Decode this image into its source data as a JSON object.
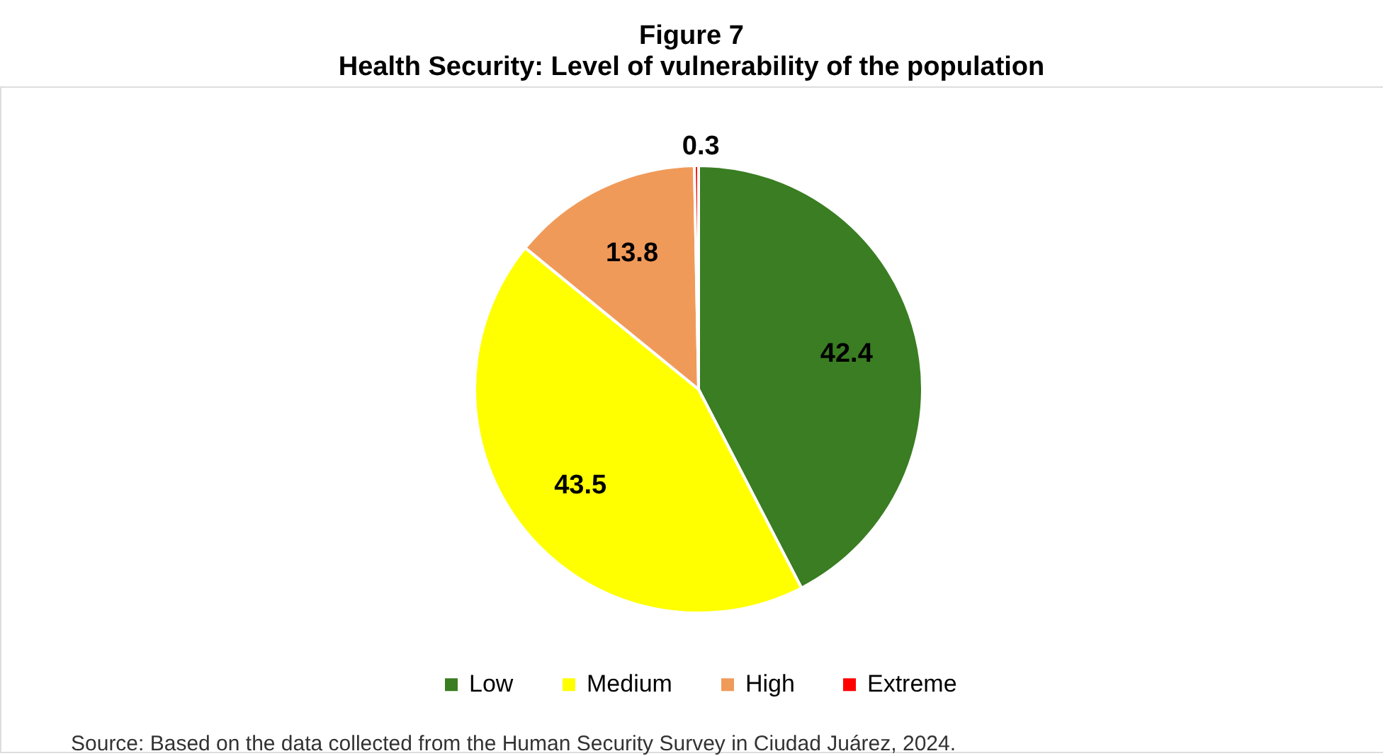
{
  "chart_data": {
    "type": "pie",
    "title": "Figure 7",
    "subtitle": "Health Security: Level of vulnerability of the population",
    "categories": [
      "Low",
      "Medium",
      "High",
      "Extreme"
    ],
    "values": [
      42.4,
      43.5,
      13.8,
      0.3
    ],
    "colors": [
      "#3a7d22",
      "#ffff00",
      "#f09a5a",
      "#ff0000"
    ],
    "data_labels": true,
    "legend": "bottom",
    "annotations": [
      "Source: Based on the data collected from the Human Security Survey in Ciudad Juárez, 2024."
    ]
  }
}
